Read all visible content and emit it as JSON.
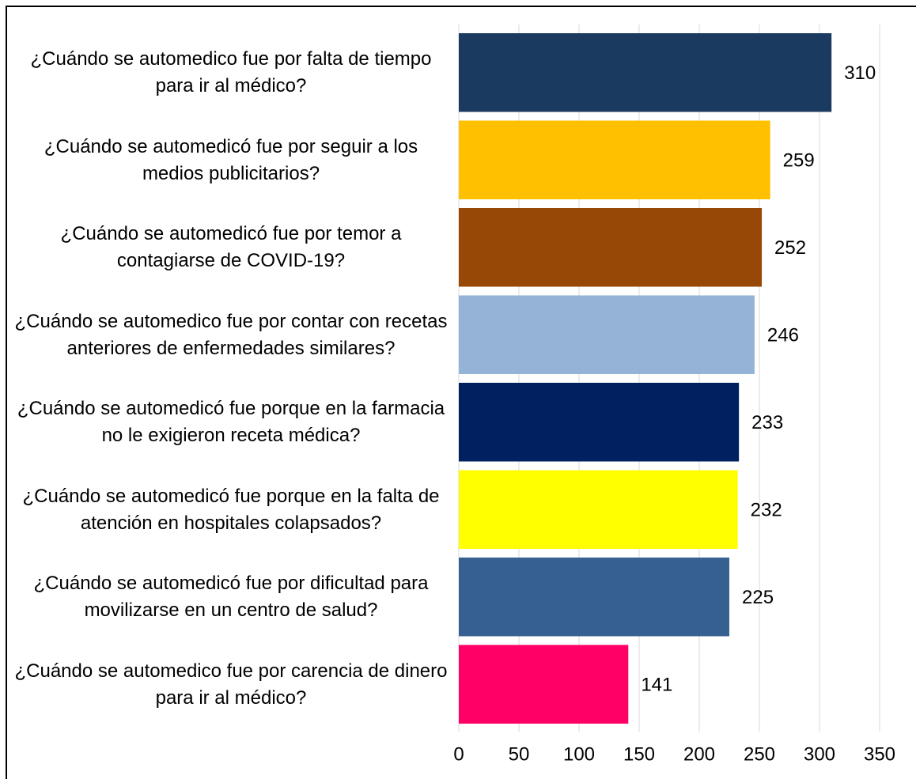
{
  "chart_data": {
    "type": "bar",
    "orientation": "horizontal",
    "categories": [
      "¿Cuándo se automedico fue por falta de tiempo para ir al médico?",
      "¿Cuándo se automedicó fue por seguir a los medios publicitarios?",
      "¿Cuándo se automedicó fue por temor a contagiarse de COVID-19?",
      "¿Cuándo se automedico fue por contar con recetas anteriores de enfermedades similares?",
      "¿Cuándo se automedicó fue porque en la farmacia no le exigieron receta médica?",
      "¿Cuándo se automedicó fue porque en la falta de atención en hospitales colapsados?",
      "¿Cuándo se automedicó fue por dificultad para movilizarse en un centro de salud?",
      "¿Cuándo se automedico fue por carencia de dinero para ir al médico?"
    ],
    "values": [
      310,
      259,
      252,
      246,
      233,
      232,
      225,
      141
    ],
    "colors": [
      "#1b3a60",
      "#ffc000",
      "#974706",
      "#95b3d7",
      "#002060",
      "#ffff00",
      "#376092",
      "#ff0066"
    ],
    "xlim": [
      0,
      350
    ],
    "xticks": [
      0,
      50,
      100,
      150,
      200,
      250,
      300,
      350
    ],
    "grid": true
  }
}
